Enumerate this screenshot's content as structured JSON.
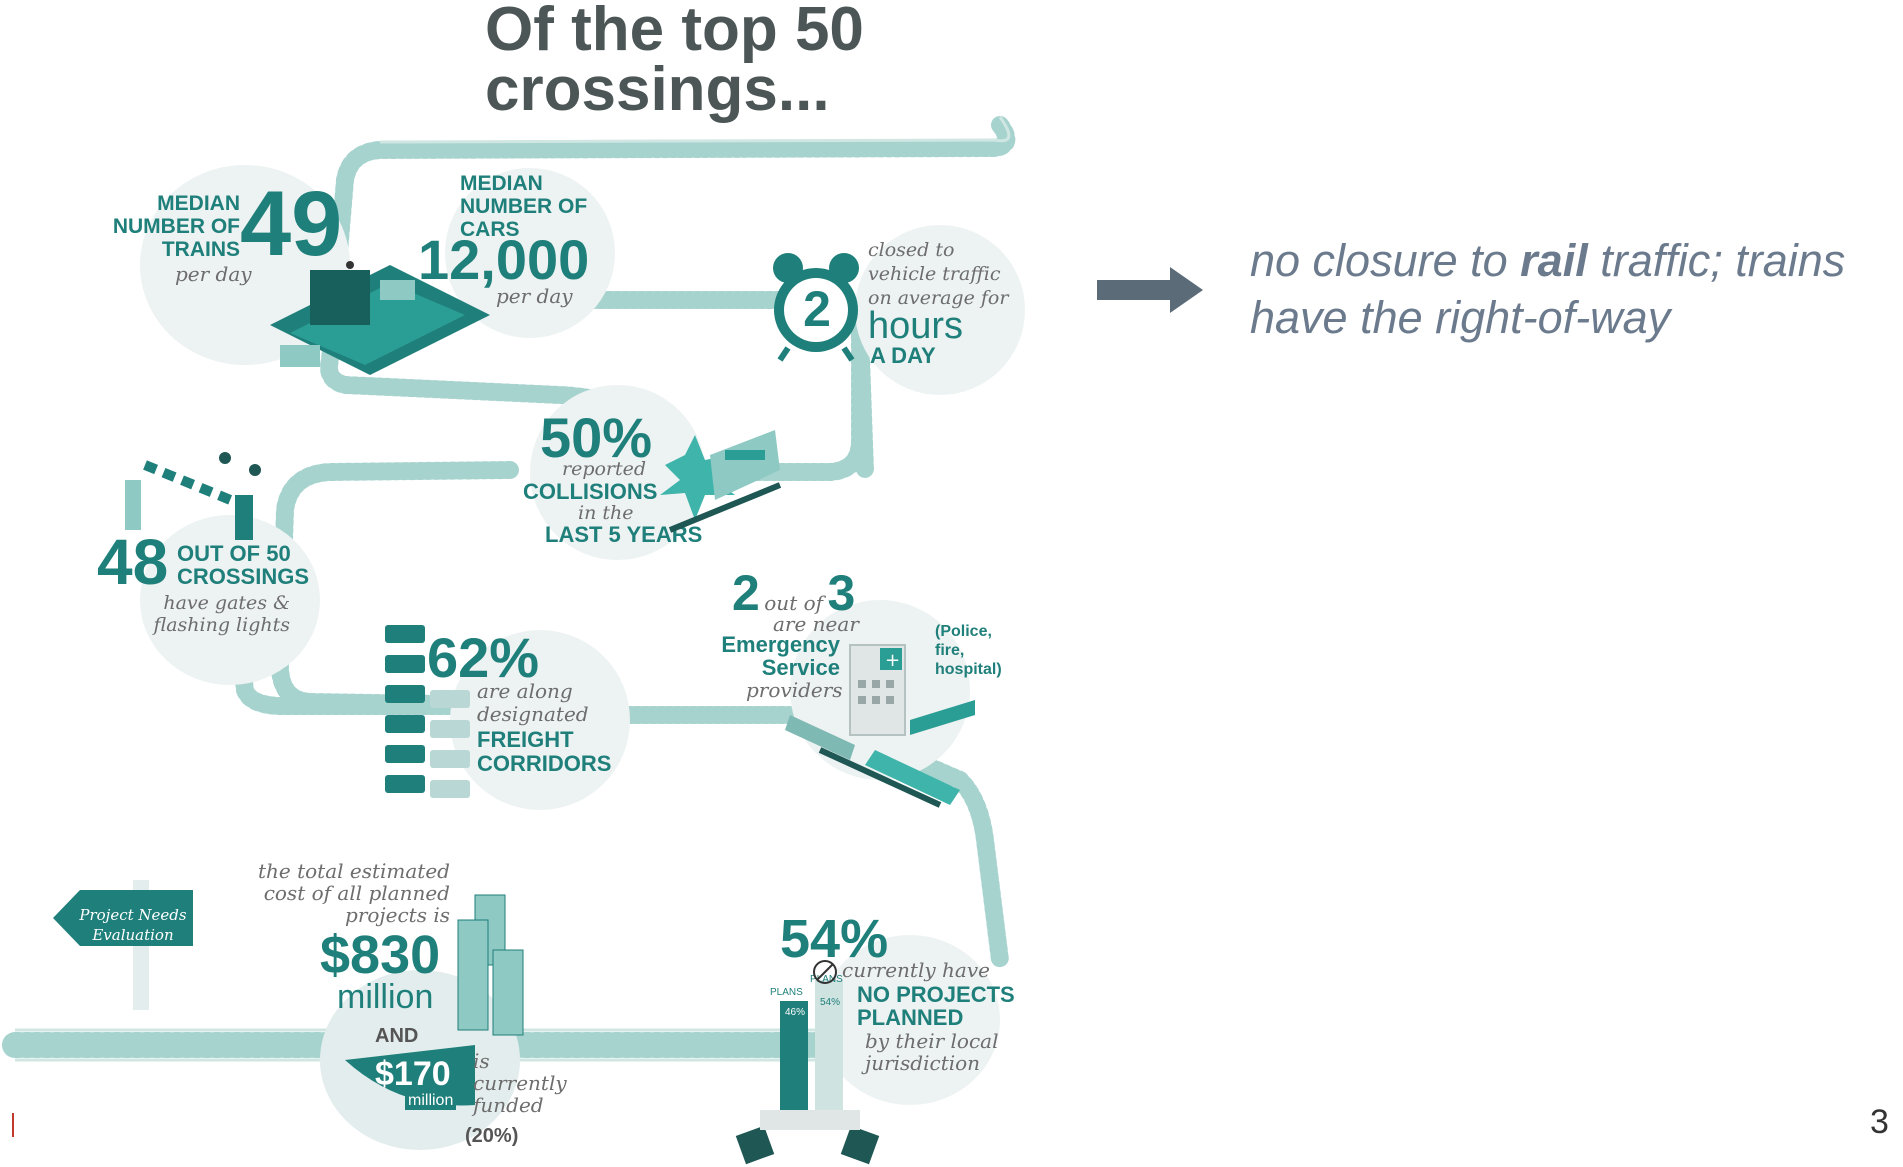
{
  "title": {
    "line1": "Of the top 50",
    "line2": "crossings..."
  },
  "trains": {
    "label_lines": [
      "MEDIAN",
      "NUMBER OF",
      "TRAINS"
    ],
    "value": "49",
    "unit": "per day"
  },
  "cars": {
    "label_lines": [
      "MEDIAN",
      "NUMBER OF",
      "CARS"
    ],
    "value": "12,000",
    "unit": "per day"
  },
  "closure": {
    "value": "2",
    "text_lines": [
      "closed to",
      "vehicle traffic",
      "on average for"
    ],
    "unit": "hours",
    "suffix": "A DAY"
  },
  "collisions": {
    "value": "50%",
    "line1": "reported",
    "line2": "COLLISIONS",
    "line3": "in the",
    "line4": "LAST 5 YEARS"
  },
  "gates": {
    "value": "48",
    "label_lines": [
      "OUT OF 50",
      "CROSSINGS"
    ],
    "text_lines": [
      "have gates &",
      "flashing lights"
    ]
  },
  "freight": {
    "value": "62%",
    "text_lines": [
      "are along",
      "designated"
    ],
    "label_lines": [
      "FREIGHT",
      "CORRIDORS"
    ]
  },
  "emergency": {
    "value_a": "2",
    "out_of": "out of",
    "value_b": "3",
    "are_near": "are near",
    "label_lines": [
      "Emergency",
      "Service"
    ],
    "providers": "providers",
    "note_lines": [
      "(Police,",
      "fire,",
      "hospital)"
    ]
  },
  "cost": {
    "intro_lines": [
      "the total estimated",
      "cost of all planned",
      "projects is"
    ],
    "total": "$830",
    "total_unit": "million",
    "and": "AND",
    "funded": "$170",
    "funded_unit": "million",
    "funded_text_lines": [
      "is",
      "currently",
      "funded"
    ],
    "funded_pct": "(20%)"
  },
  "sign": {
    "lines": [
      "Project Needs",
      "Evaluation"
    ]
  },
  "plans": {
    "value": "54%",
    "line1": "currently have",
    "label_lines": [
      "NO PROJECTS",
      "PLANNED"
    ],
    "text_lines": [
      "by their local",
      "jurisdiction"
    ],
    "bar_a_label": "PLANS",
    "bar_a_pct": "46%",
    "bar_b_label": "PLANS",
    "bar_b_pct": "54%",
    "bar_a_fraction": 0.46,
    "bar_b_fraction": 0.54
  },
  "callout": {
    "prefix": "no closure to ",
    "emphasis": "rail",
    "suffix": " traffic; trains",
    "line2": "have the right-of-way"
  },
  "page_number": "3",
  "colors": {
    "teal": "#1f7f7a",
    "light_teal": "#8fc9c3",
    "circle_bg": "#edf2f2",
    "title_gray": "#4d5656",
    "callout_gray": "#6b7a8c",
    "arrow_fill": "#5c6b78"
  }
}
